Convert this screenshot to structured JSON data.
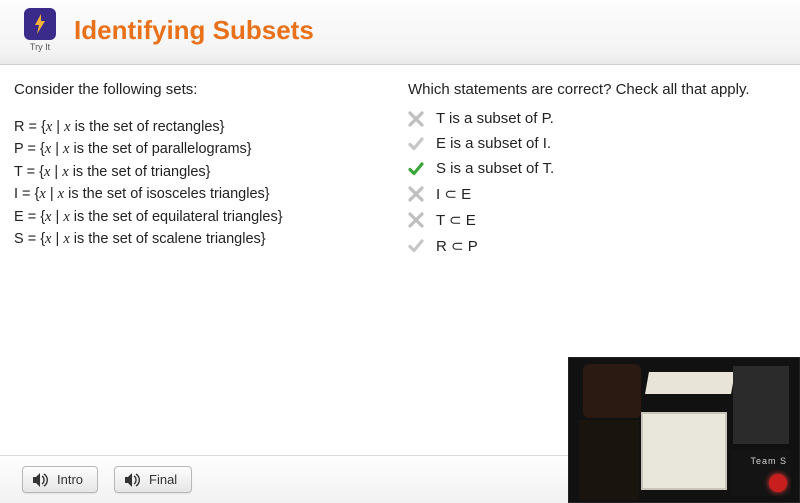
{
  "colors": {
    "title": "#e8711a",
    "tryit_bg": "#3a2a8a",
    "bolt": "#f6b23a",
    "x_gray": "#bfbfbf",
    "check_gray": "#c6c6c6",
    "check_green": "#3aa63a"
  },
  "header": {
    "tryit_label": "Try It",
    "title": "Identifying Subsets"
  },
  "left": {
    "prompt": "Consider the following sets:",
    "defs": [
      {
        "lhs": "R",
        "desc": "is the set of rectangles"
      },
      {
        "lhs": "P",
        "desc": "is the set of parallelograms"
      },
      {
        "lhs": "T",
        "desc": "is the set of triangles"
      },
      {
        "lhs": "I",
        "desc": "is the set of isosceles triangles"
      },
      {
        "lhs": "E",
        "desc": "is the set of equilateral triangles"
      },
      {
        "lhs": "S",
        "desc": "is the set of scalene triangles"
      }
    ]
  },
  "right": {
    "question": "Which statements are correct? Check all that apply.",
    "answers": [
      {
        "mark": "x_gray",
        "text": "T is a subset of P."
      },
      {
        "mark": "check_gray",
        "text": "E is a subset of I."
      },
      {
        "mark": "check_green",
        "text": "S is a subset of T."
      },
      {
        "mark": "x_gray",
        "text": "I ⊂ E"
      },
      {
        "mark": "x_gray",
        "text": "T ⊂ E"
      },
      {
        "mark": "check_gray",
        "text": "R ⊂ P"
      }
    ]
  },
  "footer": {
    "intro": "Intro",
    "final": "Final"
  },
  "video": {
    "team_label": "Team S"
  }
}
